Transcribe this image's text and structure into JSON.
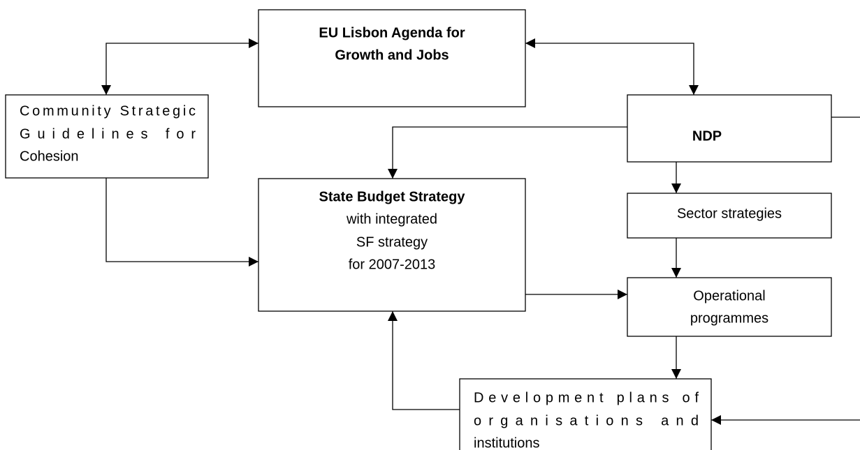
{
  "nodes": [
    {
      "lines": [
        "EU Lisbon Agenda for",
        "Growth and Jobs"
      ]
    },
    {
      "lines": [
        "Community Strategic",
        "Guidelines for",
        "Cohesion"
      ]
    },
    {
      "lines": [
        "NDP"
      ]
    },
    {
      "lines": [
        "State Budget Strategy",
        "with integrated",
        "SF strategy",
        "for 2007-2013"
      ]
    },
    {
      "lines": [
        "Sector strategies"
      ]
    },
    {
      "lines": [
        "Operational",
        "programmes"
      ]
    },
    {
      "lines": [
        "Development plans of",
        "organisations and",
        "institutions"
      ]
    }
  ]
}
